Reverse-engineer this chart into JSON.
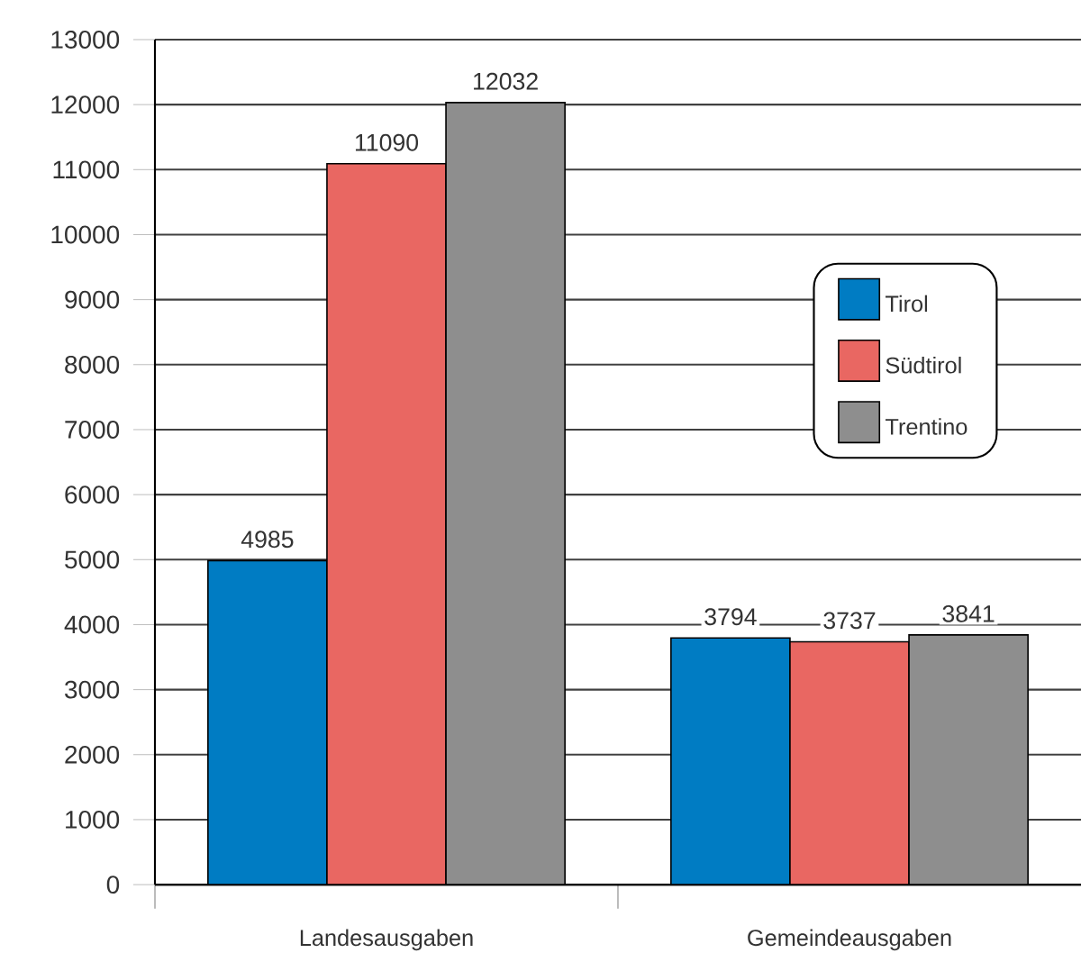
{
  "chart_data": {
    "type": "bar",
    "categories": [
      "Landesausgaben",
      "Gemeindeausgaben"
    ],
    "series": [
      {
        "name": "Tirol",
        "color": "#007cc3",
        "values": [
          4985,
          3794
        ]
      },
      {
        "name": "Südtirol",
        "color": "#e96762",
        "values": [
          11090,
          3737
        ]
      },
      {
        "name": "Trentino",
        "color": "#8e8e8e",
        "values": [
          12032,
          3841
        ]
      }
    ],
    "ylim": [
      0,
      13000
    ],
    "yticks": [
      0,
      1000,
      2000,
      3000,
      4000,
      5000,
      6000,
      7000,
      8000,
      9000,
      10000,
      11000,
      12000,
      13000
    ],
    "grid": "y",
    "legend": "right",
    "data_labels": true
  }
}
